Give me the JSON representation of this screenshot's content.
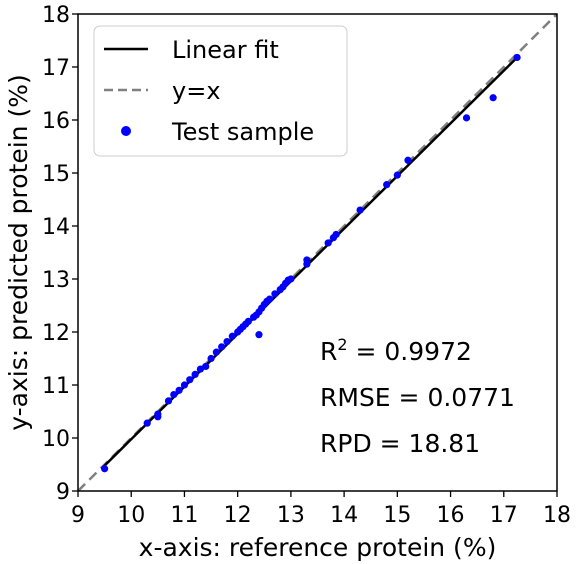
{
  "chart_data": {
    "type": "scatter",
    "xlabel": "x-axis: reference protein (%)",
    "ylabel": "y-axis: predicted protein (%)",
    "xlim": [
      9,
      18
    ],
    "ylim": [
      9,
      18
    ],
    "xticks": [
      9,
      10,
      11,
      12,
      13,
      14,
      15,
      16,
      17,
      18
    ],
    "yticks": [
      9,
      10,
      11,
      12,
      13,
      14,
      15,
      16,
      17,
      18
    ],
    "grid": false,
    "legend_position": "top-left",
    "series": [
      {
        "name": "Linear fit",
        "kind": "line",
        "style": "solid",
        "color": "#000000",
        "x": [
          9.45,
          17.25
        ],
        "y": [
          9.43,
          17.18
        ]
      },
      {
        "name": "y=x",
        "kind": "line",
        "style": "dashed",
        "color": "#808080",
        "x": [
          9,
          18
        ],
        "y": [
          9,
          18
        ]
      },
      {
        "name": "Test sample",
        "kind": "scatter",
        "color": "#0000ff",
        "x": [
          9.5,
          10.3,
          10.5,
          10.5,
          10.7,
          10.8,
          10.9,
          11.0,
          11.1,
          11.2,
          11.3,
          11.4,
          11.5,
          11.6,
          11.7,
          11.8,
          11.9,
          12.0,
          12.05,
          12.1,
          12.15,
          12.2,
          12.3,
          12.35,
          12.4,
          12.4,
          12.45,
          12.5,
          12.55,
          12.6,
          12.7,
          12.8,
          12.85,
          12.9,
          12.95,
          13.0,
          13.3,
          13.3,
          13.7,
          13.8,
          13.85,
          14.3,
          14.8,
          15.0,
          15.2,
          16.3,
          16.8,
          17.25
        ],
        "y": [
          9.42,
          10.28,
          10.4,
          10.45,
          10.7,
          10.82,
          10.9,
          11.0,
          11.1,
          11.2,
          11.3,
          11.35,
          11.5,
          11.62,
          11.72,
          11.82,
          11.92,
          12.0,
          12.05,
          12.1,
          12.15,
          12.2,
          12.28,
          12.32,
          11.95,
          12.38,
          12.45,
          12.52,
          12.58,
          12.62,
          12.72,
          12.8,
          12.85,
          12.92,
          12.98,
          13.0,
          13.28,
          13.36,
          13.68,
          13.78,
          13.84,
          14.3,
          14.78,
          14.96,
          15.24,
          16.04,
          16.42,
          17.18
        ]
      }
    ],
    "annotations": [
      {
        "prefix": "R",
        "superscript": "2",
        "suffix": " = 0.9972"
      },
      {
        "text": "RMSE = 0.0771"
      },
      {
        "text": "RPD = 18.81"
      }
    ]
  }
}
